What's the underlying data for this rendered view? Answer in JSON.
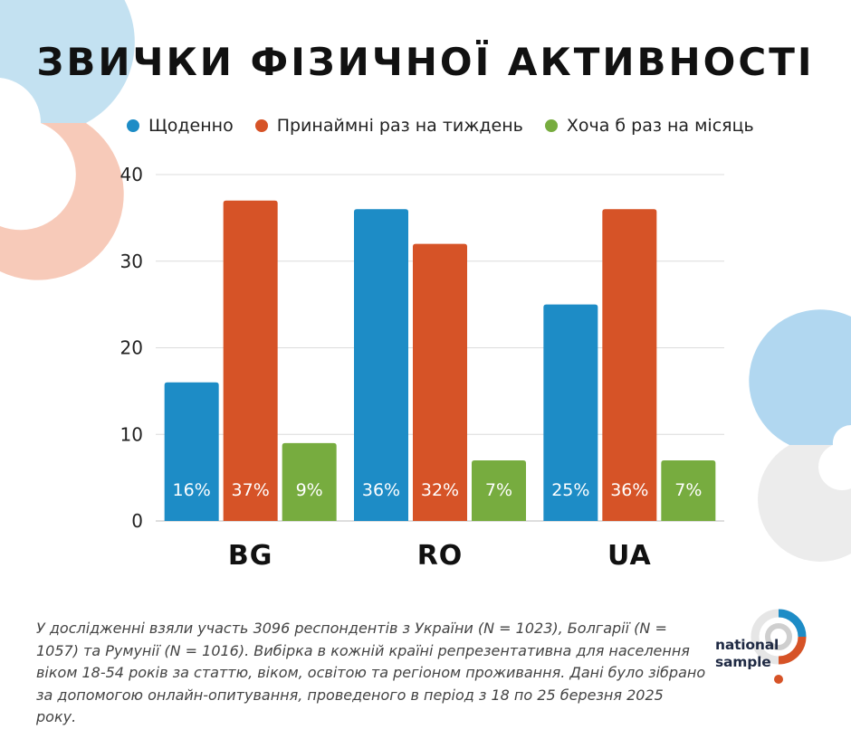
{
  "title": "ЗВИЧКИ ФІЗИЧНОЇ АКТИВНОСТІ",
  "legend": [
    {
      "label": "Щоденно",
      "color": "#1d8cc6"
    },
    {
      "label": "Принаймні раз на тиждень",
      "color": "#d65327"
    },
    {
      "label": "Хоча б раз на місяць",
      "color": "#77ac3f"
    }
  ],
  "chart_data": {
    "type": "bar",
    "categories": [
      "BG",
      "RO",
      "UA"
    ],
    "series": [
      {
        "name": "Щоденно",
        "color": "#1d8cc6",
        "values": [
          16,
          36,
          25
        ],
        "labels": [
          "16%",
          "36%",
          "25%"
        ]
      },
      {
        "name": "Принаймні раз на тиждень",
        "color": "#d65327",
        "values": [
          37,
          32,
          36
        ],
        "labels": [
          "37%",
          "32%",
          "36%"
        ]
      },
      {
        "name": "Хоча б раз на місяць",
        "color": "#77ac3f",
        "values": [
          9,
          7,
          7
        ],
        "labels": [
          "9%",
          "7%",
          "7%"
        ]
      }
    ],
    "ylim": [
      0,
      40
    ],
    "yticks": [
      0,
      10,
      20,
      30,
      40
    ],
    "grid": true,
    "legend_position": "top"
  },
  "footnote": "У дослідженні взяли участь 3096 респондентів з України (N = 1023), Болгарії (N = 1057) та Румунії (N = 1016). Вибірка в кожній країні репрезентативна для населення віком 18-54 років за статтю, віком, освітою та регіоном проживання. Дані було зібрано за допомогою онлайн-опитування, проведеного в період з 18 по 25 березня 2025 року.",
  "logo": {
    "line1": "national",
    "line2": "sample"
  }
}
